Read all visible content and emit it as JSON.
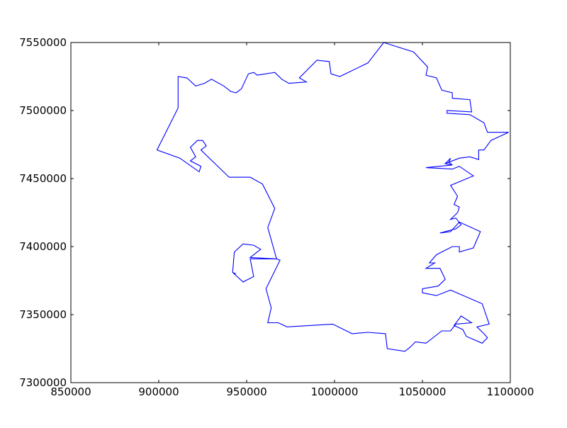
{
  "chart_data": {
    "type": "line",
    "title": "",
    "xlabel": "",
    "ylabel": "",
    "xlim": [
      850000,
      1100000
    ],
    "ylim": [
      7300000,
      7550000
    ],
    "x_ticks": [
      850000,
      900000,
      950000,
      1000000,
      1050000,
      1100000
    ],
    "y_ticks": [
      7300000,
      7350000,
      7400000,
      7450000,
      7500000,
      7550000
    ],
    "x_tick_labels": [
      "850000",
      "900000",
      "950000",
      "1000000",
      "1050000",
      "1100000"
    ],
    "y_tick_labels": [
      "7300000",
      "7350000",
      "7400000",
      "7450000",
      "7500000",
      "7550000"
    ],
    "grid": false,
    "series": [
      {
        "color": "#0000ff",
        "points": [
          [
            1028000,
            7550000
          ],
          [
            1045000,
            7543000
          ],
          [
            1053000,
            7532000
          ],
          [
            1052000,
            7526000
          ],
          [
            1058000,
            7524000
          ],
          [
            1061000,
            7515000
          ],
          [
            1067000,
            7513000
          ],
          [
            1067000,
            7509000
          ],
          [
            1077000,
            7508000
          ],
          [
            1078000,
            7499000
          ],
          [
            1064000,
            7500000
          ],
          [
            1064000,
            7498000
          ],
          [
            1077000,
            7497000
          ],
          [
            1085000,
            7491000
          ],
          [
            1087000,
            7484000
          ],
          [
            1099000,
            7484000
          ],
          [
            1089000,
            7478000
          ],
          [
            1085000,
            7471000
          ],
          [
            1082000,
            7471000
          ],
          [
            1082000,
            7464000
          ],
          [
            1077000,
            7466000
          ],
          [
            1071000,
            7465000
          ],
          [
            1063000,
            7461000
          ],
          [
            1067000,
            7460000
          ],
          [
            1065000,
            7462000
          ],
          [
            1066000,
            7465000
          ],
          [
            1063000,
            7461000
          ],
          [
            1067000,
            7460000
          ],
          [
            1052000,
            7458000
          ],
          [
            1067000,
            7457000
          ],
          [
            1071000,
            7459000
          ],
          [
            1079000,
            7452000
          ],
          [
            1066000,
            7445000
          ],
          [
            1070000,
            7437000
          ],
          [
            1068000,
            7431000
          ],
          [
            1071000,
            7429000
          ],
          [
            1070000,
            7425000
          ],
          [
            1066000,
            7420000
          ],
          [
            1069000,
            7421000
          ],
          [
            1072000,
            7416000
          ],
          [
            1069000,
            7413000
          ],
          [
            1060000,
            7410000
          ],
          [
            1066000,
            7411000
          ],
          [
            1071000,
            7418000
          ],
          [
            1083000,
            7411000
          ],
          [
            1079000,
            7399000
          ],
          [
            1071000,
            7396000
          ],
          [
            1071000,
            7400000
          ],
          [
            1067000,
            7400000
          ],
          [
            1058000,
            7394000
          ],
          [
            1054000,
            7388000
          ],
          [
            1057000,
            7388000
          ],
          [
            1052000,
            7384000
          ],
          [
            1060000,
            7384000
          ],
          [
            1063000,
            7376000
          ],
          [
            1059000,
            7371000
          ],
          [
            1050000,
            7369000
          ],
          [
            1050000,
            7366000
          ],
          [
            1058000,
            7364000
          ],
          [
            1066000,
            7368000
          ],
          [
            1075000,
            7363000
          ],
          [
            1084000,
            7358000
          ],
          [
            1088000,
            7343000
          ],
          [
            1081000,
            7341000
          ],
          [
            1085000,
            7336000
          ],
          [
            1087000,
            7333000
          ],
          [
            1084000,
            7329000
          ],
          [
            1075000,
            7334000
          ],
          [
            1073000,
            7339000
          ],
          [
            1068000,
            7342000
          ],
          [
            1072000,
            7349000
          ],
          [
            1078000,
            7344000
          ],
          [
            1069000,
            7343000
          ],
          [
            1066000,
            7338000
          ],
          [
            1061000,
            7338000
          ],
          [
            1052000,
            7329000
          ],
          [
            1046000,
            7330000
          ],
          [
            1043000,
            7326000
          ],
          [
            1040000,
            7323000
          ],
          [
            1030000,
            7325000
          ],
          [
            1029000,
            7336000
          ],
          [
            1019000,
            7337000
          ],
          [
            1010000,
            7336000
          ],
          [
            999000,
            7343000
          ],
          [
            973000,
            7341000
          ],
          [
            968000,
            7344000
          ],
          [
            962000,
            7344000
          ],
          [
            964000,
            7355000
          ],
          [
            961000,
            7369000
          ],
          [
            969000,
            7390000
          ],
          [
            967000,
            7391000
          ],
          [
            952000,
            7392000
          ],
          [
            958000,
            7398000
          ],
          [
            954000,
            7401000
          ],
          [
            948000,
            7402000
          ],
          [
            943000,
            7396000
          ],
          [
            942000,
            7381000
          ],
          [
            944000,
            7380000
          ],
          [
            942000,
            7381000
          ],
          [
            948000,
            7374000
          ],
          [
            954000,
            7378000
          ],
          [
            952000,
            7391000
          ],
          [
            967000,
            7391000
          ],
          [
            962000,
            7414000
          ],
          [
            966000,
            7428000
          ],
          [
            959000,
            7446000
          ],
          [
            952000,
            7451000
          ],
          [
            940000,
            7451000
          ],
          [
            924000,
            7471000
          ],
          [
            927000,
            7474000
          ],
          [
            925000,
            7478000
          ],
          [
            922000,
            7478000
          ],
          [
            918000,
            7473000
          ],
          [
            921000,
            7466000
          ],
          [
            918000,
            7463000
          ],
          [
            924000,
            7459000
          ],
          [
            923000,
            7455000
          ],
          [
            912000,
            7465000
          ],
          [
            899000,
            7471000
          ],
          [
            911000,
            7502000
          ],
          [
            911000,
            7525000
          ],
          [
            916000,
            7524000
          ],
          [
            921000,
            7518000
          ],
          [
            926000,
            7520000
          ],
          [
            930000,
            7523000
          ],
          [
            937000,
            7518000
          ],
          [
            941000,
            7514000
          ],
          [
            944000,
            7513000
          ],
          [
            947000,
            7516000
          ],
          [
            951000,
            7527000
          ],
          [
            954000,
            7528000
          ],
          [
            956000,
            7526000
          ],
          [
            966000,
            7528000
          ],
          [
            970000,
            7523000
          ],
          [
            974000,
            7520000
          ],
          [
            984000,
            7521000
          ],
          [
            980000,
            7524000
          ],
          [
            990000,
            7537000
          ],
          [
            997000,
            7536000
          ],
          [
            998000,
            7527000
          ],
          [
            1003000,
            7525000
          ],
          [
            1019000,
            7535000
          ],
          [
            1028000,
            7550000
          ]
        ]
      }
    ]
  }
}
